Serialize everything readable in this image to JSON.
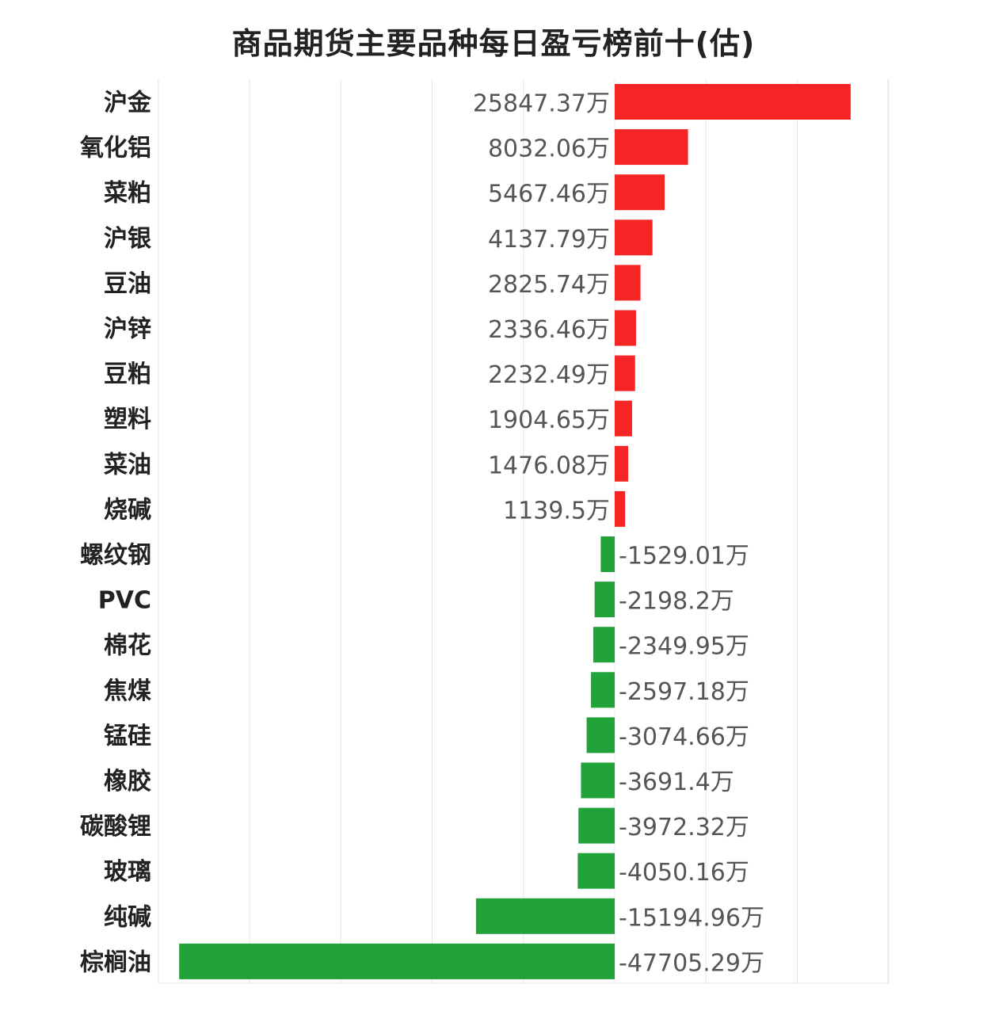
{
  "chart_data": {
    "type": "bar",
    "orientation": "horizontal",
    "title": "商品期货主要品种每日盈亏榜前十(估)",
    "unit": "万",
    "categories": [
      "沪金",
      "氧化铝",
      "菜粕",
      "沪银",
      "豆油",
      "沪锌",
      "豆粕",
      "塑料",
      "菜油",
      "烧碱",
      "螺纹钢",
      "PVC",
      "棉花",
      "焦煤",
      "锰硅",
      "橡胶",
      "碳酸锂",
      "玻璃",
      "纯碱",
      "棕榈油"
    ],
    "values": [
      25847.37,
      8032.06,
      5467.46,
      4137.79,
      2825.74,
      2336.46,
      2232.49,
      1904.65,
      1476.08,
      1139.5,
      -1529.01,
      -2198.2,
      -2349.95,
      -2597.18,
      -3074.66,
      -3691.4,
      -3972.32,
      -4050.16,
      -15194.96,
      -47705.29
    ],
    "value_labels": [
      "25847.37万",
      "8032.06万",
      "5467.46万",
      "4137.79万",
      "2825.74万",
      "2336.46万",
      "2232.49万",
      "1904.65万",
      "1476.08万",
      "1139.5万",
      "-1529.01万",
      "-2198.2万",
      "-2349.95万",
      "-2597.18万",
      "-3074.66万",
      "-3691.4万",
      "-3972.32万",
      "-4050.16万",
      "-15194.96万",
      "-47705.29万"
    ],
    "xlim": [
      -50000,
      30000
    ],
    "grid": true,
    "colors": {
      "positive": "#f52525",
      "negative": "#21a33a",
      "grid": "#e6e6e6"
    }
  }
}
